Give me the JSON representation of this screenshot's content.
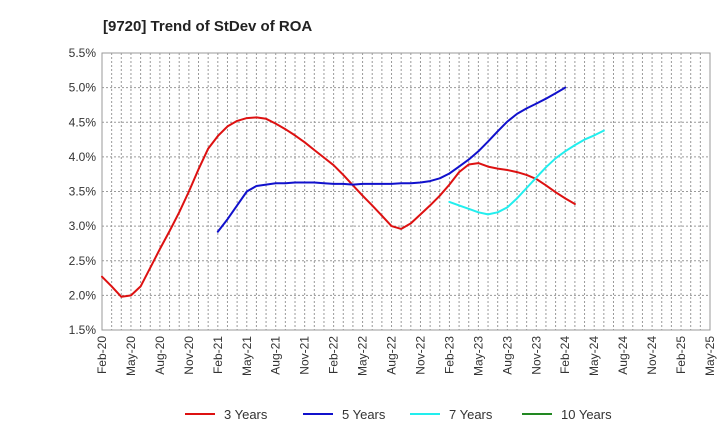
{
  "chart_data": {
    "type": "line",
    "title": "[9720]  Trend of StDev of ROA",
    "xlabel": "",
    "ylabel": "",
    "ylim": [
      1.5,
      5.5
    ],
    "yticks": [
      "1.5%",
      "2.0%",
      "2.5%",
      "3.0%",
      "3.5%",
      "4.0%",
      "4.5%",
      "5.0%",
      "5.5%"
    ],
    "yticks_values": [
      1.5,
      2.0,
      2.5,
      3.0,
      3.5,
      4.0,
      4.5,
      5.0,
      5.5
    ],
    "x_start": "Feb-20",
    "x_end": "May-25",
    "xticks": [
      "Feb-20",
      "May-20",
      "Aug-20",
      "Nov-20",
      "Feb-21",
      "May-21",
      "Aug-21",
      "Nov-21",
      "Feb-22",
      "May-22",
      "Aug-22",
      "Nov-22",
      "Feb-23",
      "May-23",
      "Aug-23",
      "Nov-23",
      "Feb-24",
      "May-24",
      "Aug-24",
      "Nov-24",
      "Feb-25",
      "May-25"
    ],
    "grid": true,
    "legend_position": "bottom",
    "series": [
      {
        "name": "3 Years",
        "color": "#dd1111",
        "points": [
          [
            "Feb-20",
            2.27
          ],
          [
            "Mar-20",
            2.13
          ],
          [
            "Apr-20",
            1.98
          ],
          [
            "May-20",
            2.0
          ],
          [
            "Jun-20",
            2.13
          ],
          [
            "Jul-20",
            2.4
          ],
          [
            "Aug-20",
            2.67
          ],
          [
            "Sep-20",
            2.93
          ],
          [
            "Oct-20",
            3.2
          ],
          [
            "Nov-20",
            3.5
          ],
          [
            "Dec-20",
            3.82
          ],
          [
            "Jan-21",
            4.12
          ],
          [
            "Feb-21",
            4.3
          ],
          [
            "Mar-21",
            4.44
          ],
          [
            "Apr-21",
            4.52
          ],
          [
            "May-21",
            4.56
          ],
          [
            "Jun-21",
            4.57
          ],
          [
            "Jul-21",
            4.55
          ],
          [
            "Aug-21",
            4.48
          ],
          [
            "Sep-21",
            4.4
          ],
          [
            "Oct-21",
            4.31
          ],
          [
            "Nov-21",
            4.21
          ],
          [
            "Dec-21",
            4.1
          ],
          [
            "Jan-22",
            3.99
          ],
          [
            "Feb-22",
            3.88
          ],
          [
            "Mar-22",
            3.74
          ],
          [
            "Apr-22",
            3.59
          ],
          [
            "May-22",
            3.44
          ],
          [
            "Jun-22",
            3.3
          ],
          [
            "Jul-22",
            3.15
          ],
          [
            "Aug-22",
            3.0
          ],
          [
            "Sep-22",
            2.96
          ],
          [
            "Oct-22",
            3.04
          ],
          [
            "Nov-22",
            3.17
          ],
          [
            "Dec-22",
            3.3
          ],
          [
            "Jan-23",
            3.44
          ],
          [
            "Feb-23",
            3.6
          ],
          [
            "Mar-23",
            3.78
          ],
          [
            "Apr-23",
            3.89
          ],
          [
            "May-23",
            3.91
          ],
          [
            "Jun-23",
            3.86
          ],
          [
            "Jul-23",
            3.83
          ],
          [
            "Aug-23",
            3.81
          ],
          [
            "Sep-23",
            3.78
          ],
          [
            "Oct-23",
            3.74
          ],
          [
            "Nov-23",
            3.68
          ],
          [
            "Dec-23",
            3.59
          ],
          [
            "Jan-24",
            3.49
          ],
          [
            "Feb-24",
            3.4
          ],
          [
            "Mar-24",
            3.32
          ]
        ]
      },
      {
        "name": "5 Years",
        "color": "#1111cc",
        "points": [
          [
            "Feb-21",
            2.92
          ],
          [
            "Mar-21",
            3.1
          ],
          [
            "Apr-21",
            3.3
          ],
          [
            "May-21",
            3.5
          ],
          [
            "Jun-21",
            3.58
          ],
          [
            "Jul-21",
            3.6
          ],
          [
            "Aug-21",
            3.62
          ],
          [
            "Sep-21",
            3.62
          ],
          [
            "Oct-21",
            3.63
          ],
          [
            "Nov-21",
            3.63
          ],
          [
            "Dec-21",
            3.63
          ],
          [
            "Jan-22",
            3.62
          ],
          [
            "Feb-22",
            3.61
          ],
          [
            "Mar-22",
            3.61
          ],
          [
            "Apr-22",
            3.6
          ],
          [
            "May-22",
            3.61
          ],
          [
            "Jun-22",
            3.61
          ],
          [
            "Jul-22",
            3.61
          ],
          [
            "Aug-22",
            3.61
          ],
          [
            "Sep-22",
            3.62
          ],
          [
            "Oct-22",
            3.62
          ],
          [
            "Nov-22",
            3.63
          ],
          [
            "Dec-22",
            3.65
          ],
          [
            "Jan-23",
            3.69
          ],
          [
            "Feb-23",
            3.76
          ],
          [
            "Mar-23",
            3.86
          ],
          [
            "Apr-23",
            3.96
          ],
          [
            "May-23",
            4.08
          ],
          [
            "Jun-23",
            4.22
          ],
          [
            "Jul-23",
            4.37
          ],
          [
            "Aug-23",
            4.51
          ],
          [
            "Sep-23",
            4.62
          ],
          [
            "Oct-23",
            4.7
          ],
          [
            "Nov-23",
            4.77
          ],
          [
            "Dec-23",
            4.84
          ],
          [
            "Jan-24",
            4.92
          ],
          [
            "Feb-24",
            5.0
          ]
        ]
      },
      {
        "name": "7 Years",
        "color": "#22eeee",
        "points": [
          [
            "Feb-23",
            3.35
          ],
          [
            "Mar-23",
            3.3
          ],
          [
            "Apr-23",
            3.25
          ],
          [
            "May-23",
            3.2
          ],
          [
            "Jun-23",
            3.17
          ],
          [
            "Jul-23",
            3.2
          ],
          [
            "Aug-23",
            3.27
          ],
          [
            "Sep-23",
            3.4
          ],
          [
            "Oct-23",
            3.55
          ],
          [
            "Nov-23",
            3.7
          ],
          [
            "Dec-23",
            3.85
          ],
          [
            "Jan-24",
            3.98
          ],
          [
            "Feb-24",
            4.08
          ],
          [
            "Mar-24",
            4.17
          ],
          [
            "Apr-24",
            4.25
          ],
          [
            "May-24",
            4.31
          ],
          [
            "Jun-24",
            4.38
          ]
        ]
      },
      {
        "name": "10 Years",
        "color": "#228822",
        "points": []
      }
    ]
  }
}
